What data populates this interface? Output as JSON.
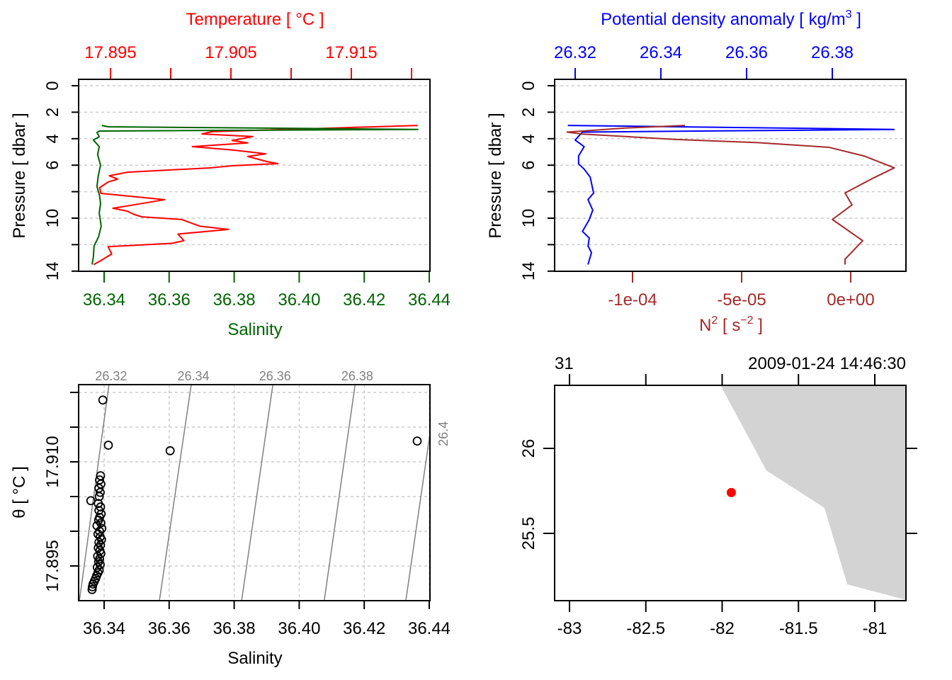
{
  "chart_data": [
    {
      "type": "line",
      "panel": "temperature-salinity-profile",
      "title": "Temperature [ °C ]",
      "xlabel": "Salinity",
      "ylabel": "Pressure [ dbar ]",
      "ylim": [
        0,
        14
      ],
      "y_ticks": [
        0,
        2,
        4,
        6,
        8,
        10,
        12,
        14
      ],
      "y_labels": [
        {
          "value": 0,
          "label": "0"
        },
        {
          "value": 2,
          "label": "2"
        },
        {
          "value": 4,
          "label": "4"
        },
        {
          "value": 6,
          "label": "6"
        },
        {
          "value": 10,
          "label": "10"
        },
        {
          "value": 14,
          "label": "14"
        }
      ],
      "top_axis": {
        "ticks": [
          17.895,
          17.9,
          17.905,
          17.91,
          17.915,
          17.92
        ],
        "labels": [
          {
            "value": 17.895,
            "label": "17.895"
          },
          {
            "value": 17.905,
            "label": "17.905"
          },
          {
            "value": 17.915,
            "label": "17.915"
          }
        ]
      },
      "bottom_axis": {
        "ticks": [
          36.34,
          36.36,
          36.38,
          36.4,
          36.42,
          36.44
        ],
        "labels": [
          {
            "value": 36.34,
            "label": "36.34"
          },
          {
            "value": 36.36,
            "label": "36.36"
          },
          {
            "value": 36.38,
            "label": "36.38"
          },
          {
            "value": 36.4,
            "label": "36.40"
          },
          {
            "value": 36.42,
            "label": "36.42"
          },
          {
            "value": 36.44,
            "label": "36.44"
          }
        ]
      },
      "series": [
        {
          "name": "Temperature",
          "color": "#ff0000",
          "axis": "top",
          "points": [
            [
              3.0,
              17.9205
            ],
            [
              3.2,
              17.9133
            ],
            [
              3.47,
              17.9034
            ],
            [
              3.64,
              17.9026
            ],
            [
              3.84,
              17.9068
            ],
            [
              4.14,
              17.9051
            ],
            [
              4.32,
              17.9064
            ],
            [
              4.6,
              17.9018
            ],
            [
              4.86,
              17.9052
            ],
            [
              5.14,
              17.9079
            ],
            [
              5.34,
              17.9064
            ],
            [
              5.73,
              17.908
            ],
            [
              5.88,
              17.9089
            ],
            [
              6.04,
              17.9051
            ],
            [
              6.2,
              17.9033
            ],
            [
              6.53,
              17.8964
            ],
            [
              6.8,
              17.8949
            ],
            [
              7.05,
              17.8956
            ],
            [
              7.27,
              17.8948
            ],
            [
              7.7,
              17.8941
            ],
            [
              8.13,
              17.8942
            ],
            [
              8.6,
              17.8995
            ],
            [
              9.0,
              17.8969
            ],
            [
              9.25,
              17.8952
            ],
            [
              9.47,
              17.8964
            ],
            [
              9.7,
              17.8969
            ],
            [
              9.9,
              17.8976
            ],
            [
              10.1,
              17.9009
            ],
            [
              10.6,
              17.9024
            ],
            [
              10.85,
              17.9048
            ],
            [
              11.2,
              17.9006
            ],
            [
              11.7,
              17.9011
            ],
            [
              11.9,
              17.9001
            ],
            [
              12.15,
              17.8948
            ],
            [
              12.7,
              17.8951
            ],
            [
              13.2,
              17.8942
            ],
            [
              13.5,
              17.8936
            ]
          ]
        },
        {
          "name": "Salinity",
          "color": "#006400",
          "axis": "bottom",
          "points": [
            [
              3.0,
              36.3393
            ],
            [
              3.1,
              36.3413
            ],
            [
              3.3,
              36.4365
            ],
            [
              3.42,
              36.3385
            ],
            [
              3.53,
              36.3378
            ],
            [
              3.85,
              36.3385
            ],
            [
              4.1,
              36.3367
            ],
            [
              4.6,
              36.3385
            ],
            [
              5.2,
              36.338
            ],
            [
              6.0,
              36.3389
            ],
            [
              6.8,
              36.3382
            ],
            [
              7.6,
              36.3378
            ],
            [
              8.3,
              36.3386
            ],
            [
              8.9,
              36.3389
            ],
            [
              9.6,
              36.3385
            ],
            [
              10.6,
              36.3391
            ],
            [
              11.4,
              36.3383
            ],
            [
              12.1,
              36.3369
            ],
            [
              12.9,
              36.3367
            ],
            [
              13.5,
              36.3363
            ]
          ]
        }
      ]
    },
    {
      "type": "line",
      "panel": "density-buoyancy-profile",
      "title_parts": {
        "main": "Potential density anomaly [ kg/m",
        "sup": "3",
        "end": " ]"
      },
      "xlabel_parts": {
        "main": "N",
        "sup": "2",
        "mid": " [ s",
        "sup2": "−2",
        "end": " ]"
      },
      "ylabel": "Pressure [ dbar ]",
      "ylim": [
        0,
        14
      ],
      "y_ticks": [
        0,
        2,
        4,
        6,
        8,
        10,
        12,
        14
      ],
      "y_labels": [
        {
          "value": 0,
          "label": "0"
        },
        {
          "value": 2,
          "label": "2"
        },
        {
          "value": 4,
          "label": "4"
        },
        {
          "value": 6,
          "label": "6"
        },
        {
          "value": 10,
          "label": "10"
        },
        {
          "value": 14,
          "label": "14"
        }
      ],
      "top_axis": {
        "ticks": [
          26.32,
          26.34,
          26.36,
          26.38
        ],
        "labels": [
          {
            "value": 26.32,
            "label": "26.32"
          },
          {
            "value": 26.34,
            "label": "26.34"
          },
          {
            "value": 26.36,
            "label": "26.36"
          },
          {
            "value": 26.38,
            "label": "26.38"
          }
        ]
      },
      "bottom_axis": {
        "ticks": [
          -0.0001,
          -5e-05,
          0
        ],
        "labels": [
          {
            "value": -0.0001,
            "label": "-1e-04"
          },
          {
            "value": -5e-05,
            "label": "-5e-05"
          },
          {
            "value": 0,
            "label": "0e+00"
          }
        ]
      },
      "series": [
        {
          "name": "Potential density anomaly",
          "color": "#0000ff",
          "axis": "top",
          "points": [
            [
              3.0,
              26.3183
            ],
            [
              3.3,
              26.3944
            ],
            [
              3.5,
              26.3217
            ],
            [
              4.1,
              26.32
            ],
            [
              4.6,
              26.3221
            ],
            [
              5.3,
              26.3208
            ],
            [
              5.9,
              26.3208
            ],
            [
              6.3,
              26.3221
            ],
            [
              6.9,
              26.3235
            ],
            [
              8.1,
              26.3243
            ],
            [
              8.6,
              26.323
            ],
            [
              9.4,
              26.3241
            ],
            [
              10.1,
              26.3233
            ],
            [
              11.0,
              26.3217
            ],
            [
              11.5,
              26.3233
            ],
            [
              12.1,
              26.323
            ],
            [
              12.6,
              26.3238
            ],
            [
              13.5,
              26.323
            ]
          ]
        },
        {
          "name": "N2",
          "color": "#a52a2a",
          "axis": "bottom",
          "points": [
            [
              3.0,
              -7.6e-05
            ],
            [
              3.2,
              -0.000104
            ],
            [
              3.5,
              -0.00013
            ],
            [
              3.65,
              -0.000123
            ],
            [
              4.05,
              -8.1e-05
            ],
            [
              4.3,
              -4.25e-05
            ],
            [
              4.65,
              -1e-05
            ],
            [
              5.3,
              6e-06
            ],
            [
              6.2,
              2e-05
            ],
            [
              7.05,
              9.4e-06
            ],
            [
              8.1,
              -2.6e-06
            ],
            [
              9.0,
              6e-07
            ],
            [
              10.1,
              -8.4e-06
            ],
            [
              11.7,
              5.5e-06
            ],
            [
              13.1,
              -2.6e-06
            ],
            [
              13.5,
              -2.6e-06
            ]
          ]
        }
      ]
    },
    {
      "type": "scatter",
      "panel": "ts-diagram",
      "xlabel": "Salinity",
      "ylabel": "θ [ °C ]",
      "x_axis": {
        "ticks": [
          36.34,
          36.36,
          36.38,
          36.4,
          36.42,
          36.44
        ],
        "labels": [
          {
            "value": 36.34,
            "label": "36.34"
          },
          {
            "value": 36.36,
            "label": "36.36"
          },
          {
            "value": 36.38,
            "label": "36.38"
          },
          {
            "value": 36.4,
            "label": "36.40"
          },
          {
            "value": 36.42,
            "label": "36.42"
          },
          {
            "value": 36.44,
            "label": "36.44"
          }
        ]
      },
      "y_axis": {
        "ticks": [
          17.895,
          17.9,
          17.905,
          17.91,
          17.915,
          17.92
        ],
        "labels": [
          {
            "value": 17.895,
            "label": "17.895"
          },
          {
            "value": 17.91,
            "label": "17.910"
          }
        ]
      },
      "density_contours": [
        {
          "label": "26.32",
          "s_top": 36.3415,
          "s_bottom": 36.3324
        },
        {
          "label": "26.34",
          "s_top": 36.3668,
          "s_bottom": 36.357
        },
        {
          "label": "26.36",
          "s_top": 36.3919,
          "s_bottom": 36.3823
        },
        {
          "label": "26.38",
          "s_top": 36.4172,
          "s_bottom": 36.4077
        },
        {
          "label": "26.4",
          "s_top": 36.4424,
          "s_bottom": 36.4328
        }
      ],
      "points": [
        [
          36.3396,
          17.9189
        ],
        [
          36.3413,
          17.9124
        ],
        [
          36.3603,
          17.9116
        ],
        [
          36.4363,
          17.913
        ],
        [
          36.3389,
          17.908
        ],
        [
          36.3386,
          17.9074
        ],
        [
          36.339,
          17.9068
        ],
        [
          36.3384,
          17.9062
        ],
        [
          36.3388,
          17.9056
        ],
        [
          36.3385,
          17.905
        ],
        [
          36.3359,
          17.9044
        ],
        [
          36.3382,
          17.904
        ],
        [
          36.3389,
          17.9035
        ],
        [
          36.3384,
          17.903
        ],
        [
          36.3391,
          17.9025
        ],
        [
          36.3386,
          17.902
        ],
        [
          36.3383,
          17.9016
        ],
        [
          36.339,
          17.9012
        ],
        [
          36.3378,
          17.9008
        ],
        [
          36.3393,
          17.9004
        ],
        [
          36.3386,
          17.9
        ],
        [
          36.3381,
          17.8996
        ],
        [
          36.3388,
          17.8992
        ],
        [
          36.3392,
          17.8988
        ],
        [
          36.3384,
          17.8984
        ],
        [
          36.3389,
          17.898
        ],
        [
          36.3382,
          17.8976
        ],
        [
          36.3387,
          17.8972
        ],
        [
          36.339,
          17.8968
        ],
        [
          36.338,
          17.8964
        ],
        [
          36.3386,
          17.896
        ],
        [
          36.3383,
          17.8956
        ],
        [
          36.3388,
          17.8952
        ],
        [
          36.3379,
          17.8948
        ],
        [
          36.3385,
          17.8944
        ],
        [
          36.3381,
          17.894
        ],
        [
          36.3377,
          17.8936
        ],
        [
          36.3374,
          17.8932
        ],
        [
          36.337,
          17.8928
        ],
        [
          36.3366,
          17.8924
        ],
        [
          36.3364,
          17.892
        ],
        [
          36.3363,
          17.8916
        ]
      ]
    },
    {
      "type": "map",
      "panel": "station-map",
      "top_left_label": "31",
      "top_right_label": "2009-01-24 14:46:30",
      "x_axis": {
        "ticks": [
          -83,
          -82.5,
          -82,
          -81.5,
          -81
        ],
        "labels": [
          {
            "value": -83,
            "label": "-83"
          },
          {
            "value": -82.5,
            "label": "-82.5"
          },
          {
            "value": -82,
            "label": "-82"
          },
          {
            "value": -81.5,
            "label": "-81.5"
          },
          {
            "value": -81,
            "label": "-81"
          }
        ]
      },
      "y_axis": {
        "ticks": [
          26,
          25.5
        ],
        "labels": [
          {
            "value": 26,
            "label": "26"
          },
          {
            "value": 25.5,
            "label": "25.5"
          }
        ]
      },
      "land_polygon": [
        [
          -82.01,
          26.37
        ],
        [
          -81.71,
          25.87
        ],
        [
          -81.33,
          25.65
        ],
        [
          -81.18,
          25.2
        ],
        [
          -80.8,
          25.11
        ],
        [
          -80.8,
          26.37
        ]
      ],
      "land_color": "#d3d3d3",
      "station": {
        "lon": -81.94,
        "lat": 25.74,
        "color": "#ff0000"
      }
    }
  ]
}
